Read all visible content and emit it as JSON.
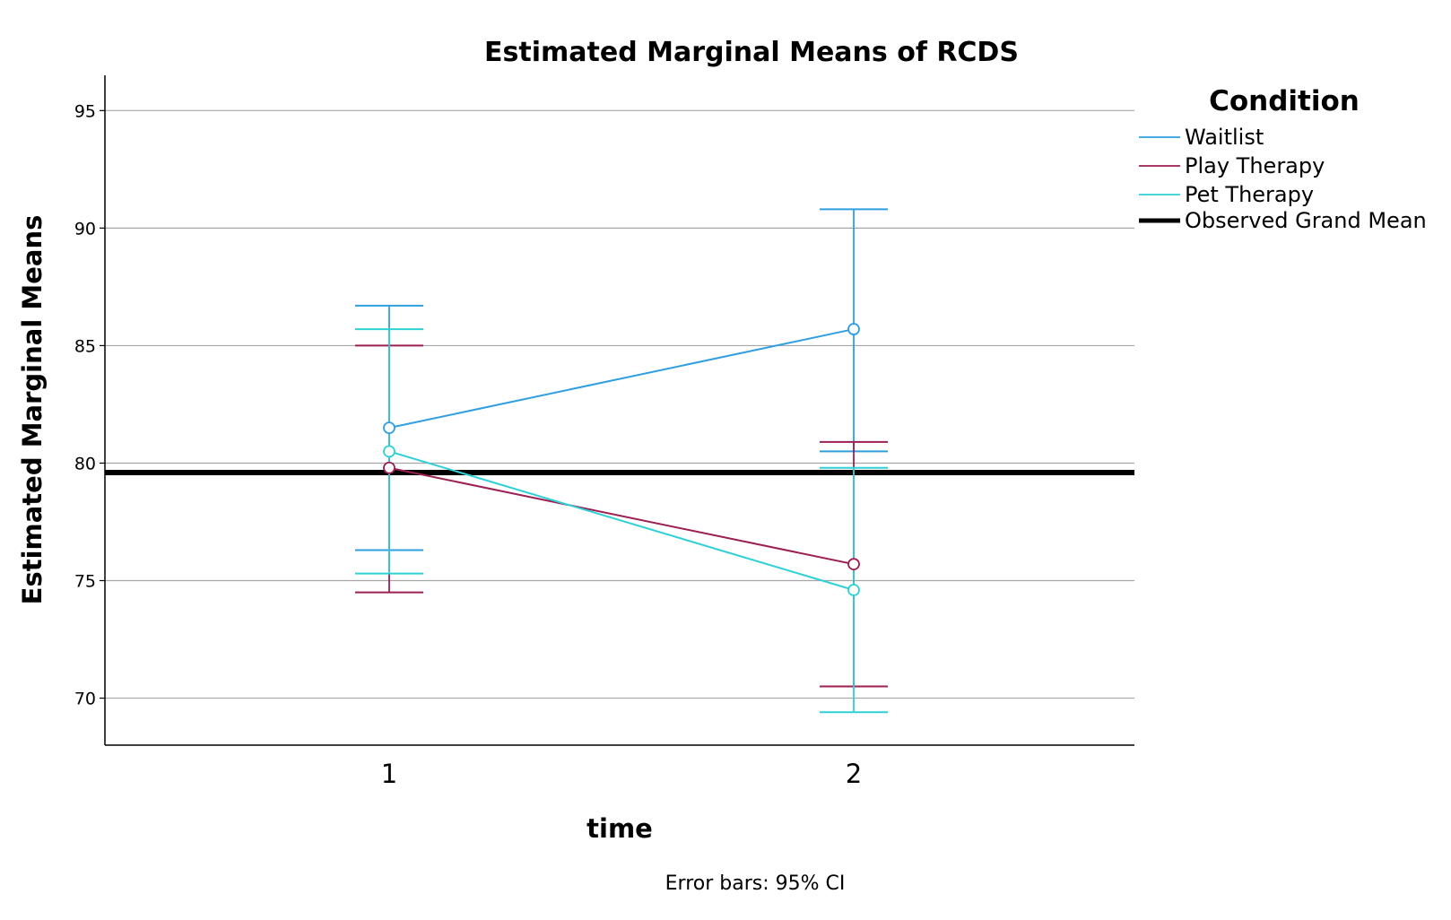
{
  "chart_data": {
    "type": "line",
    "title": "Estimated Marginal Means of RCDS",
    "xlabel": "time",
    "ylabel": "Estimated Marginal Means",
    "categories": [
      "1",
      "2"
    ],
    "ylim": [
      68,
      96.5
    ],
    "yticks": [
      70,
      75,
      80,
      85,
      90,
      95
    ],
    "grid": true,
    "legend": {
      "title": "Condition",
      "position": "right"
    },
    "series": [
      {
        "name": "Waitlist",
        "color": "#2f9fe0",
        "values": [
          81.5,
          85.7
        ],
        "ci_lower": [
          76.3,
          80.5
        ],
        "ci_upper": [
          86.7,
          90.8
        ]
      },
      {
        "name": "Play Therapy",
        "color": "#9c1e52",
        "values": [
          79.8,
          75.7
        ],
        "ci_lower": [
          74.5,
          70.5
        ],
        "ci_upper": [
          85.0,
          80.9
        ]
      },
      {
        "name": "Pet Therapy",
        "color": "#2fd0d6",
        "values": [
          80.5,
          74.6
        ],
        "ci_lower": [
          75.3,
          69.4
        ],
        "ci_upper": [
          85.7,
          79.8
        ]
      }
    ],
    "reference_line": {
      "name": "Observed Grand Mean",
      "value": 79.6,
      "color": "#000000"
    },
    "footnote": "Error bars: 95% CI"
  }
}
